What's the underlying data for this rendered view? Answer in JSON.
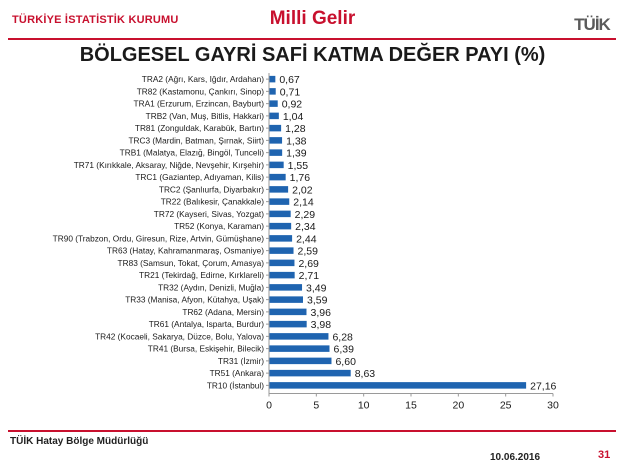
{
  "header": {
    "organization": "TÜRKİYE İSTATİSTİK KURUMU",
    "section_title": "Milli Gelir",
    "logo_text": "TÜİK",
    "logo_icon": "tuik-logo"
  },
  "footer": {
    "office": "TÜİK Hatay Bölge Müdürlüğü",
    "date": "10.06.2016",
    "page_number": "31"
  },
  "colors": {
    "accent": "#c8102e",
    "bar": "#1f64b0"
  },
  "chart_data": {
    "type": "bar",
    "orientation": "horizontal",
    "title": "BÖLGESEL GAYRİ SAFİ KATMA DEĞER PAYI (%)",
    "xlabel": "",
    "ylabel": "",
    "xlim": [
      0,
      30
    ],
    "xticks": [
      0,
      5,
      10,
      15,
      20,
      25,
      30
    ],
    "grid": false,
    "categories": [
      "TRA2 (Ağrı, Kars, Iğdır, Ardahan)",
      "TR82 (Kastamonu, Çankırı, Sinop)",
      "TRA1 (Erzurum, Erzincan, Bayburt)",
      "TRB2 (Van, Muş, Bitlis, Hakkari)",
      "TR81 (Zonguldak, Karabük, Bartın)",
      "TRC3 (Mardin, Batman, Şırnak, Siirt)",
      "TRB1 (Malatya, Elazığ, Bingöl, Tunceli)",
      "TR71 (Kırıkkale, Aksaray, Niğde, Nevşehir, Kırşehir)",
      "TRC1 (Gaziantep, Adıyaman, Kilis)",
      "TRC2 (Şanlıurfa, Diyarbakır)",
      "TR22 (Balıkesir, Çanakkale)",
      "TR72 (Kayseri, Sivas, Yozgat)",
      "TR52 (Konya, Karaman)",
      "TR90 (Trabzon, Ordu, Giresun, Rize, Artvin, Gümüşhane)",
      "TR63 (Hatay, Kahramanmaraş, Osmaniye)",
      "TR83 (Samsun, Tokat, Çorum, Amasya)",
      "TR21 (Tekirdağ, Edirne, Kırklareli)",
      "TR32 (Aydın, Denizli, Muğla)",
      "TR33 (Manisa, Afyon, Kütahya, Uşak)",
      "TR62 (Adana, Mersin)",
      "TR61 (Antalya, Isparta, Burdur)",
      "TR42 (Kocaeli, Sakarya, Düzce, Bolu, Yalova)",
      "TR41 (Bursa, Eskişehir, Bilecik)",
      "TR31 (İzmir)",
      "TR51 (Ankara)",
      "TR10 (İstanbul)"
    ],
    "values": [
      0.67,
      0.71,
      0.92,
      1.04,
      1.28,
      1.38,
      1.39,
      1.55,
      1.76,
      2.02,
      2.14,
      2.29,
      2.34,
      2.44,
      2.59,
      2.69,
      2.71,
      3.49,
      3.59,
      3.96,
      3.98,
      6.28,
      6.39,
      6.6,
      8.63,
      27.16
    ],
    "value_labels": [
      "0,67",
      "0,71",
      "0,92",
      "1,04",
      "1,28",
      "1,38",
      "1,39",
      "1,55",
      "1,76",
      "2,02",
      "2,14",
      "2,29",
      "2,34",
      "2,44",
      "2,59",
      "2,69",
      "2,71",
      "3,49",
      "3,59",
      "3,96",
      "3,98",
      "6,28",
      "6,39",
      "6,60",
      "8,63",
      "27,16"
    ]
  }
}
